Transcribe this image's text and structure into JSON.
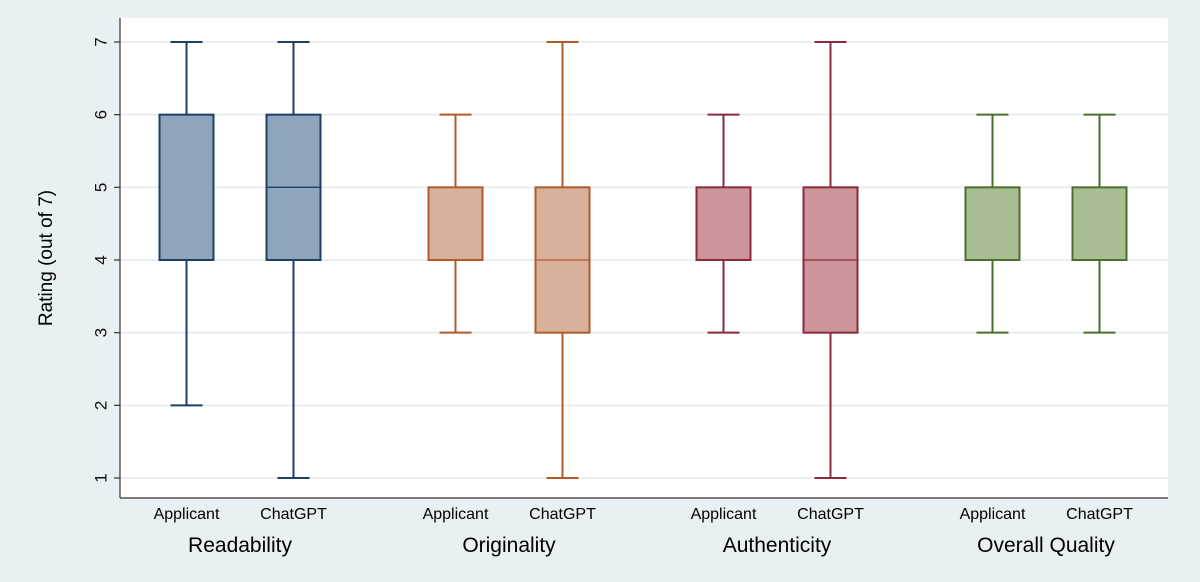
{
  "chart_data": {
    "type": "boxplot",
    "ylabel": "Rating (out of 7)",
    "ylim": [
      0.7,
      7.3
    ],
    "yticks": [
      1,
      2,
      3,
      4,
      5,
      6,
      7
    ],
    "grid": true,
    "groups": [
      {
        "label": "Readability",
        "color": "#1f3f64",
        "fill": "#8fa5bc",
        "boxes": [
          {
            "label": "Applicant",
            "min": 2,
            "q1": 4,
            "median": 4,
            "q3": 6,
            "max": 7
          },
          {
            "label": "ChatGPT",
            "min": 1,
            "q1": 4,
            "median": 5,
            "q3": 6,
            "max": 7
          }
        ]
      },
      {
        "label": "Originality",
        "color": "#b05a2c",
        "fill": "#d9b09a",
        "boxes": [
          {
            "label": "Applicant",
            "min": 3,
            "q1": 4,
            "median": 4,
            "q3": 5,
            "max": 6
          },
          {
            "label": "ChatGPT",
            "min": 1,
            "q1": 3,
            "median": 4,
            "q3": 5,
            "max": 7
          }
        ]
      },
      {
        "label": "Authenticity",
        "color": "#8c2a3a",
        "fill": "#cc959b",
        "boxes": [
          {
            "label": "Applicant",
            "min": 3,
            "q1": 4,
            "median": 4,
            "q3": 5,
            "max": 6
          },
          {
            "label": "ChatGPT",
            "min": 1,
            "q1": 3,
            "median": 4,
            "q3": 5,
            "max": 7
          }
        ]
      },
      {
        "label": "Overall Quality",
        "color": "#4c6e2c",
        "fill": "#a8bd92",
        "boxes": [
          {
            "label": "Applicant",
            "min": 3,
            "q1": 4,
            "median": 4,
            "q3": 5,
            "max": 6
          },
          {
            "label": "ChatGPT",
            "min": 3,
            "q1": 4,
            "median": 4,
            "q3": 5,
            "max": 6
          }
        ]
      }
    ]
  }
}
